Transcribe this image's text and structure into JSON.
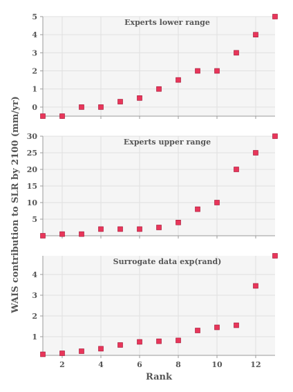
{
  "figure": {
    "ylabel": "WAIS contribution to SLR by 2100 (mm/yr)",
    "xlabel": "Rank"
  },
  "colors": {
    "marker_fill": "#e8365a",
    "marker_edge": "#a01030",
    "panel_bg": "#f5f5f5",
    "grid": "#e0e0e0",
    "axis": "#999999"
  },
  "chart_data": [
    {
      "type": "scatter",
      "title": "Experts lower range",
      "x": [
        1,
        2,
        3,
        4,
        5,
        6,
        7,
        8,
        9,
        10,
        11,
        12,
        13
      ],
      "y": [
        -0.5,
        -0.5,
        0,
        0,
        0.3,
        0.5,
        1,
        1.5,
        2,
        2,
        3,
        4,
        5
      ],
      "xlim": [
        1,
        13
      ],
      "ylim": [
        -0.5,
        5
      ],
      "xticks": [
        2,
        4,
        6,
        8,
        10,
        12
      ],
      "yticks": [
        0,
        1,
        2,
        3,
        4,
        5
      ],
      "show_xticklabels": false,
      "grid": true
    },
    {
      "type": "scatter",
      "title": "Experts upper range",
      "x": [
        1,
        2,
        3,
        4,
        5,
        6,
        7,
        8,
        9,
        10,
        11,
        12,
        13
      ],
      "y": [
        0,
        0.5,
        0.5,
        2,
        2,
        2,
        2.5,
        4,
        8,
        10,
        20,
        25,
        30
      ],
      "xlim": [
        1,
        13
      ],
      "ylim": [
        0,
        30
      ],
      "xticks": [
        2,
        4,
        6,
        8,
        10,
        12
      ],
      "yticks": [
        5,
        10,
        15,
        20,
        25,
        30
      ],
      "show_xticklabels": false,
      "grid": true
    },
    {
      "type": "scatter",
      "title": "Surrogate data exp(rand)",
      "x": [
        1,
        2,
        3,
        4,
        5,
        6,
        7,
        8,
        9,
        10,
        11,
        12,
        13
      ],
      "y": [
        0.15,
        0.2,
        0.3,
        0.42,
        0.6,
        0.75,
        0.78,
        0.82,
        1.3,
        1.45,
        1.55,
        3.45,
        4.9
      ],
      "xlim": [
        1,
        13
      ],
      "ylim": [
        0.1,
        4.9
      ],
      "xticks": [
        2,
        4,
        6,
        8,
        10,
        12
      ],
      "yticks": [
        1,
        2,
        3,
        4
      ],
      "show_xticklabels": true,
      "grid": true
    }
  ]
}
